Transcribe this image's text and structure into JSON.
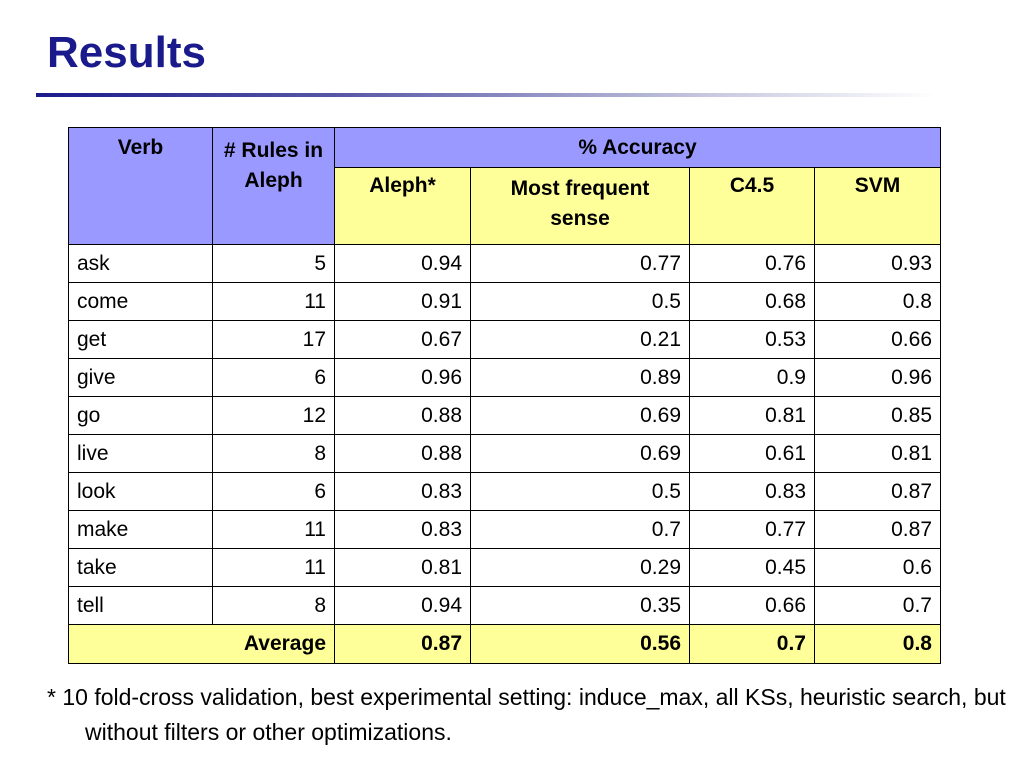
{
  "title": "Results",
  "table": {
    "headers": {
      "verb": "Verb",
      "rules": "# Rules in Aleph",
      "accuracy": "% Accuracy",
      "aleph": "Aleph*",
      "most_frequent": "Most frequent sense",
      "c45": "C4.5",
      "svm": "SVM"
    },
    "rows": [
      {
        "verb": "ask",
        "rules": "5",
        "aleph": "0.94",
        "mfs": "0.77",
        "c45": "0.76",
        "svm": "0.93"
      },
      {
        "verb": "come",
        "rules": "11",
        "aleph": "0.91",
        "mfs": "0.5",
        "c45": "0.68",
        "svm": "0.8"
      },
      {
        "verb": "get",
        "rules": "17",
        "aleph": "0.67",
        "mfs": "0.21",
        "c45": "0.53",
        "svm": "0.66"
      },
      {
        "verb": "give",
        "rules": "6",
        "aleph": "0.96",
        "mfs": "0.89",
        "c45": "0.9",
        "svm": "0.96"
      },
      {
        "verb": "go",
        "rules": "12",
        "aleph": "0.88",
        "mfs": "0.69",
        "c45": "0.81",
        "svm": "0.85"
      },
      {
        "verb": "live",
        "rules": "8",
        "aleph": "0.88",
        "mfs": "0.69",
        "c45": "0.61",
        "svm": "0.81"
      },
      {
        "verb": "look",
        "rules": "6",
        "aleph": "0.83",
        "mfs": "0.5",
        "c45": "0.83",
        "svm": "0.87"
      },
      {
        "verb": "make",
        "rules": "11",
        "aleph": "0.83",
        "mfs": "0.7",
        "c45": "0.77",
        "svm": "0.87"
      },
      {
        "verb": "take",
        "rules": "11",
        "aleph": "0.81",
        "mfs": "0.29",
        "c45": "0.45",
        "svm": "0.6"
      },
      {
        "verb": "tell",
        "rules": "8",
        "aleph": "0.94",
        "mfs": "0.35",
        "c45": "0.66",
        "svm": "0.7"
      }
    ],
    "average": {
      "label": "Average",
      "aleph": "0.87",
      "mfs": "0.56",
      "c45": "0.7",
      "svm": "0.8"
    }
  },
  "footnote": "* 10 fold-cross validation, best experimental setting: induce_max, all KSs, heuristic search, but without filters or other optimizations.",
  "colors": {
    "title": "#1a1a8c",
    "header_blue": "#9999ff",
    "header_yellow": "#ffff99"
  }
}
